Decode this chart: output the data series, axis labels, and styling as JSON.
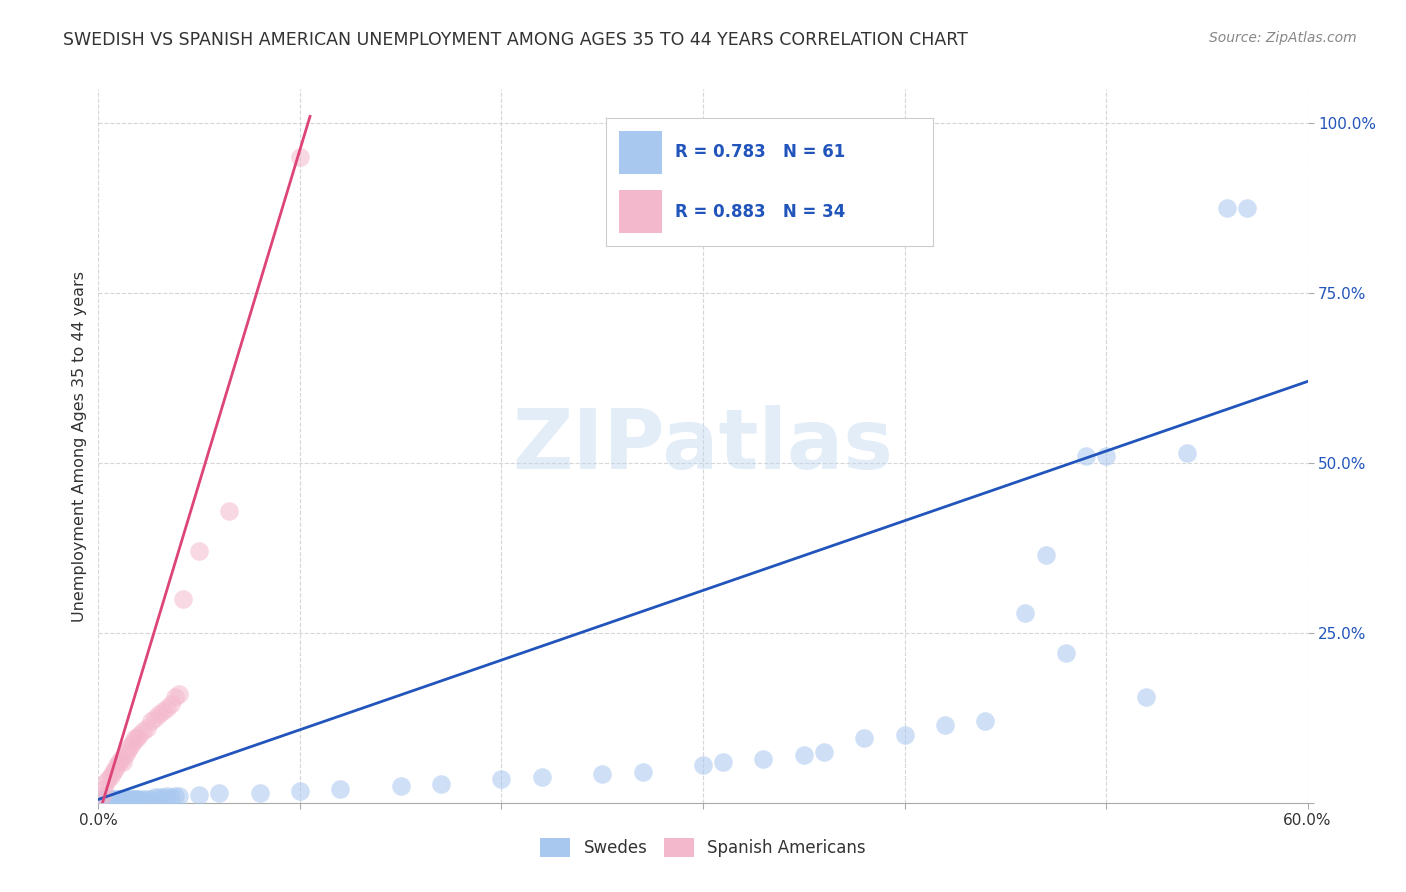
{
  "title": "SWEDISH VS SPANISH AMERICAN UNEMPLOYMENT AMONG AGES 35 TO 44 YEARS CORRELATION CHART",
  "source": "Source: ZipAtlas.com",
  "ylabel": "Unemployment Among Ages 35 to 44 years",
  "xlim": [
    0.0,
    0.6
  ],
  "ylim": [
    0.0,
    1.05
  ],
  "x_ticks": [
    0.0,
    0.1,
    0.2,
    0.3,
    0.4,
    0.5,
    0.6
  ],
  "x_tick_labels": [
    "0.0%",
    "",
    "",
    "",
    "",
    "",
    "60.0%"
  ],
  "y_ticks": [
    0.0,
    0.25,
    0.5,
    0.75,
    1.0
  ],
  "y_tick_labels": [
    "",
    "25.0%",
    "50.0%",
    "75.0%",
    "100.0%"
  ],
  "blue_color": "#a8c8f0",
  "pink_color": "#f4b8cc",
  "blue_line_color": "#2255bb",
  "pink_line_color": "#dd4477",
  "blue_scatter": [
    [
      0.002,
      0.005
    ],
    [
      0.003,
      0.005
    ],
    [
      0.004,
      0.005
    ],
    [
      0.005,
      0.005
    ],
    [
      0.006,
      0.005
    ],
    [
      0.007,
      0.005
    ],
    [
      0.008,
      0.005
    ],
    [
      0.009,
      0.005
    ],
    [
      0.01,
      0.005
    ],
    [
      0.011,
      0.005
    ],
    [
      0.012,
      0.005
    ],
    [
      0.013,
      0.005
    ],
    [
      0.014,
      0.005
    ],
    [
      0.015,
      0.005
    ],
    [
      0.016,
      0.005
    ],
    [
      0.017,
      0.005
    ],
    [
      0.018,
      0.005
    ],
    [
      0.019,
      0.005
    ],
    [
      0.02,
      0.005
    ],
    [
      0.022,
      0.005
    ],
    [
      0.024,
      0.005
    ],
    [
      0.026,
      0.005
    ],
    [
      0.028,
      0.008
    ],
    [
      0.03,
      0.008
    ],
    [
      0.032,
      0.008
    ],
    [
      0.034,
      0.01
    ],
    [
      0.036,
      0.008
    ],
    [
      0.038,
      0.01
    ],
    [
      0.04,
      0.01
    ],
    [
      0.05,
      0.012
    ],
    [
      0.06,
      0.015
    ],
    [
      0.08,
      0.015
    ],
    [
      0.1,
      0.018
    ],
    [
      0.12,
      0.02
    ],
    [
      0.15,
      0.025
    ],
    [
      0.17,
      0.028
    ],
    [
      0.2,
      0.035
    ],
    [
      0.22,
      0.038
    ],
    [
      0.25,
      0.042
    ],
    [
      0.27,
      0.045
    ],
    [
      0.3,
      0.055
    ],
    [
      0.31,
      0.06
    ],
    [
      0.33,
      0.065
    ],
    [
      0.35,
      0.07
    ],
    [
      0.36,
      0.075
    ],
    [
      0.38,
      0.095
    ],
    [
      0.4,
      0.1
    ],
    [
      0.42,
      0.115
    ],
    [
      0.44,
      0.12
    ],
    [
      0.46,
      0.28
    ],
    [
      0.47,
      0.365
    ],
    [
      0.48,
      0.22
    ],
    [
      0.49,
      0.51
    ],
    [
      0.5,
      0.51
    ],
    [
      0.52,
      0.155
    ],
    [
      0.54,
      0.515
    ],
    [
      0.56,
      0.875
    ],
    [
      0.57,
      0.875
    ]
  ],
  "pink_scatter": [
    [
      0.002,
      0.01
    ],
    [
      0.003,
      0.02
    ],
    [
      0.004,
      0.03
    ],
    [
      0.005,
      0.035
    ],
    [
      0.006,
      0.04
    ],
    [
      0.007,
      0.045
    ],
    [
      0.008,
      0.05
    ],
    [
      0.009,
      0.055
    ],
    [
      0.01,
      0.06
    ],
    [
      0.011,
      0.065
    ],
    [
      0.012,
      0.06
    ],
    [
      0.013,
      0.07
    ],
    [
      0.014,
      0.075
    ],
    [
      0.015,
      0.08
    ],
    [
      0.016,
      0.085
    ],
    [
      0.017,
      0.09
    ],
    [
      0.018,
      0.095
    ],
    [
      0.019,
      0.095
    ],
    [
      0.02,
      0.1
    ],
    [
      0.022,
      0.105
    ],
    [
      0.024,
      0.11
    ],
    [
      0.026,
      0.12
    ],
    [
      0.028,
      0.125
    ],
    [
      0.03,
      0.13
    ],
    [
      0.032,
      0.135
    ],
    [
      0.034,
      0.14
    ],
    [
      0.036,
      0.145
    ],
    [
      0.038,
      0.155
    ],
    [
      0.04,
      0.16
    ],
    [
      0.042,
      0.3
    ],
    [
      0.05,
      0.37
    ],
    [
      0.065,
      0.43
    ],
    [
      0.1,
      0.95
    ]
  ],
  "blue_line_x": [
    0.0,
    0.6
  ],
  "blue_line_y": [
    0.005,
    0.62
  ],
  "pink_line_x": [
    0.0,
    0.105
  ],
  "pink_line_y": [
    -0.02,
    1.01
  ],
  "watermark_text": "ZIPatlas",
  "background_color": "#ffffff",
  "grid_color": "#cccccc",
  "title_color": "#333333",
  "tick_label_color_right": "#2255bb",
  "tick_label_color_bottom": "#333333"
}
